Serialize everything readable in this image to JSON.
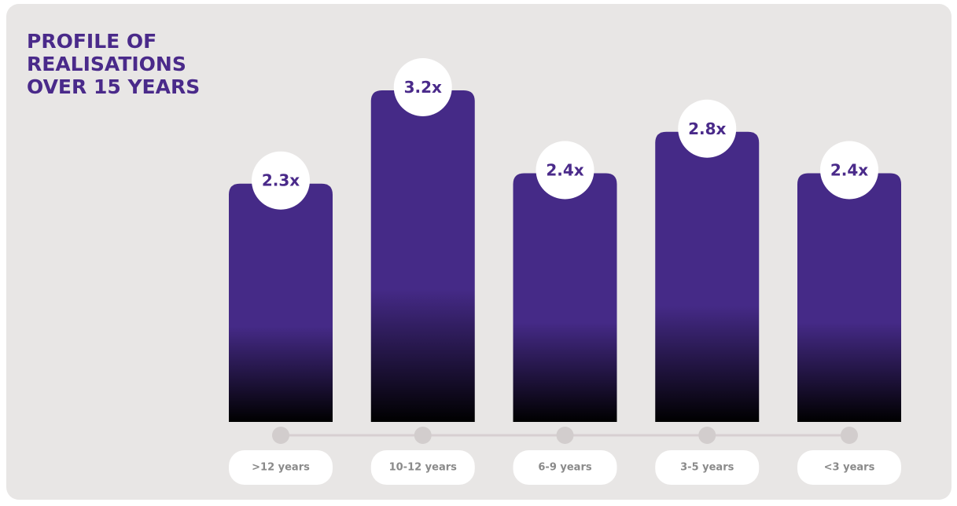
{
  "chart_data": {
    "type": "bar",
    "title": "PROFILE OF REALISATIONS OVER 15 YEARS",
    "categories": [
      ">12 years",
      "10-12 years",
      "6-9 years",
      "3-5 years",
      "<3 years"
    ],
    "values": [
      2.3,
      3.2,
      2.4,
      2.8,
      2.4
    ],
    "value_labels": [
      "2.3x",
      "3.2x",
      "2.4x",
      "2.8x",
      "2.4x"
    ],
    "color": "#452a87"
  }
}
